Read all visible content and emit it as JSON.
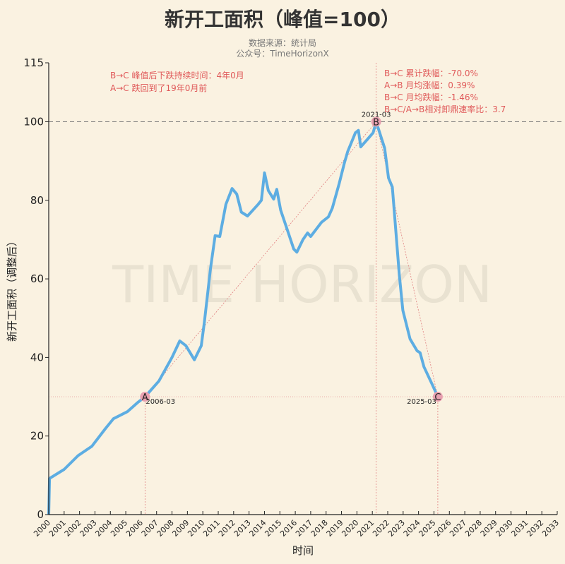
{
  "header": {
    "title": "新开工面积（峰值=100）",
    "source": "数据来源：统计局",
    "account": "公众号：TimeHorizonX"
  },
  "watermark": "TIME HORIZON",
  "colors": {
    "background": "#faf2e1",
    "line": "#5dade2",
    "annotation": "#e05a5a",
    "marker": "#e8a0b0"
  },
  "annotations_left": [
    "B→C 峰值后下跌持续时间：4年0月",
    "A→C 跌回到了19年0月前"
  ],
  "annotations_right": [
    "B→C 累计跌幅：-70.0%",
    "A→B 月均涨幅：0.39%",
    "B→C 月均跌幅：-1.46%",
    "B→C/A→B相对卸鼎速率比：3.7"
  ],
  "chart_data": {
    "type": "line",
    "title": "新开工面积（峰值=100）",
    "xlabel": "时间",
    "ylabel": "新开工面积（调整后）",
    "xlim": [
      2000,
      2033
    ],
    "ylim": [
      0,
      115
    ],
    "yticks": [
      0,
      20,
      40,
      60,
      80,
      100,
      115
    ],
    "xticks": [
      "2000",
      "2001",
      "2002",
      "2003",
      "2004",
      "2005",
      "2006",
      "2007",
      "2008",
      "2009",
      "2010",
      "2011",
      "2012",
      "2013",
      "2014",
      "2015",
      "2016",
      "2017",
      "2018",
      "2019",
      "2020",
      "2021",
      "2022",
      "2023",
      "2024",
      "2025",
      "2026",
      "2027",
      "2028",
      "2029",
      "2030",
      "2031",
      "2032",
      "2033"
    ],
    "grid": false,
    "reference_line": 100,
    "series": [
      {
        "x": [
          2000.0,
          2000.05,
          2001.0,
          2001.9,
          2002.8,
          2003.7,
          2004.2,
          2005.1,
          2005.8,
          2006.25,
          2007.15,
          2008.0,
          2008.5,
          2008.9,
          2009.45,
          2009.9,
          2010.1,
          2010.5,
          2010.8,
          2011.1,
          2011.5,
          2011.9,
          2012.2,
          2012.5,
          2012.9,
          2013.25,
          2013.6,
          2013.8,
          2014.0,
          2014.25,
          2014.6,
          2014.8,
          2015.05,
          2015.55,
          2015.9,
          2016.1,
          2016.5,
          2016.8,
          2017.0,
          2017.7,
          2018.15,
          2018.4,
          2018.85,
          2019.2,
          2019.4,
          2019.9,
          2020.1,
          2020.25,
          2020.7,
          2021.05,
          2021.25,
          2021.8,
          2022.05,
          2022.3,
          2022.5,
          2022.75,
          2022.98,
          2023.45,
          2023.9,
          2024.1,
          2024.35,
          2024.9,
          2025.25
        ],
        "y": [
          0,
          9.2,
          11.5,
          15,
          17.4,
          22,
          24.4,
          26.2,
          28.6,
          30,
          34,
          40,
          44.2,
          43,
          39.4,
          43,
          49,
          62.7,
          71,
          70.8,
          79,
          83,
          81.6,
          77,
          76,
          77.5,
          79,
          80,
          87,
          82.5,
          80.3,
          82.8,
          77.5,
          71.7,
          67.6,
          66.8,
          70,
          71.7,
          70.8,
          74.4,
          75.8,
          78,
          84.3,
          89.7,
          92.4,
          97.2,
          97.8,
          93.6,
          95.6,
          97.2,
          100,
          93.3,
          85.7,
          83.4,
          73.5,
          61,
          52,
          44.7,
          41.7,
          41.2,
          37.6,
          33,
          30
        ]
      }
    ],
    "points": [
      {
        "name": "A",
        "label": "2006-03",
        "x": 2006.25,
        "y": 30
      },
      {
        "name": "B",
        "label": "2021-03",
        "x": 2021.25,
        "y": 100
      },
      {
        "name": "C",
        "label": "2025-03",
        "x": 2025.25,
        "y": 30
      }
    ]
  }
}
